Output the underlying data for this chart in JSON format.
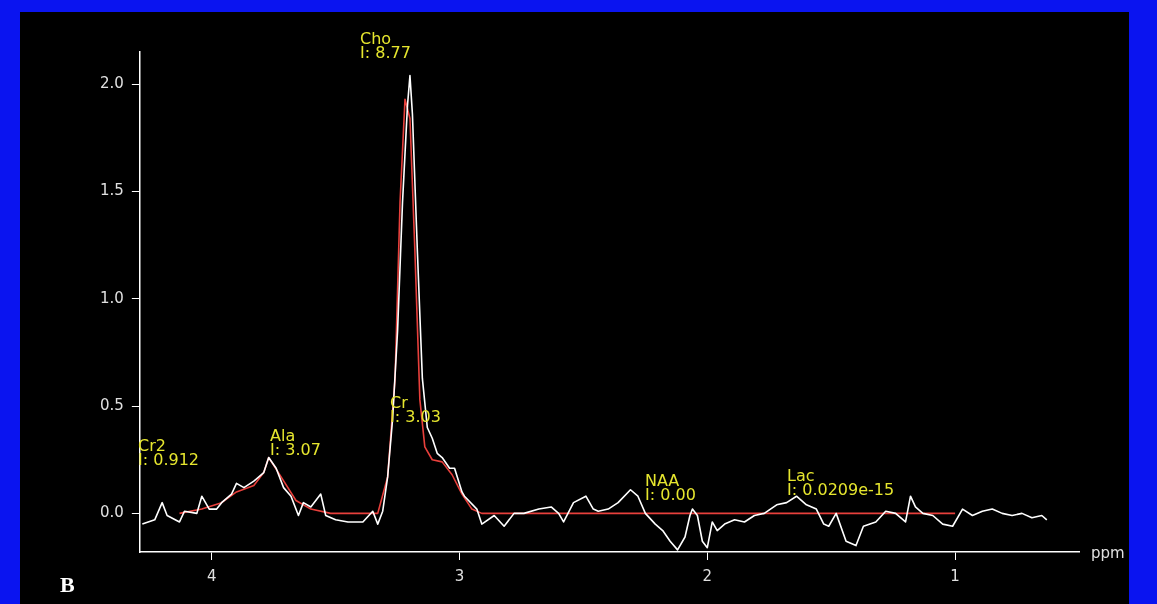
{
  "chart_data": {
    "type": "line",
    "xlabel": "ppm",
    "x": [
      4.28,
      4.23,
      4.2,
      4.18,
      4.13,
      4.11,
      4.06,
      4.04,
      4.01,
      3.98,
      3.96,
      3.92,
      3.9,
      3.87,
      3.83,
      3.79,
      3.77,
      3.74,
      3.71,
      3.68,
      3.65,
      3.63,
      3.6,
      3.56,
      3.54,
      3.5,
      3.45,
      3.39,
      3.35,
      3.33,
      3.31,
      3.29,
      3.27,
      3.25,
      3.23,
      3.21,
      3.2,
      3.19,
      3.17,
      3.15,
      3.13,
      3.11,
      3.09,
      3.07,
      3.04,
      3.02,
      2.99,
      2.98,
      2.93,
      2.91,
      2.86,
      2.82,
      2.78,
      2.74,
      2.68,
      2.63,
      2.6,
      2.58,
      2.54,
      2.49,
      2.46,
      2.44,
      2.4,
      2.36,
      2.31,
      2.28,
      2.25,
      2.21,
      2.18,
      2.15,
      2.12,
      2.09,
      2.07,
      2.06,
      2.04,
      2.02,
      2.0,
      1.98,
      1.96,
      1.93,
      1.89,
      1.85,
      1.81,
      1.77,
      1.72,
      1.68,
      1.64,
      1.6,
      1.56,
      1.53,
      1.51,
      1.48,
      1.44,
      1.4,
      1.37,
      1.32,
      1.28,
      1.24,
      1.2,
      1.18,
      1.16,
      1.13,
      1.09,
      1.05,
      1.01,
      0.97,
      0.93,
      0.89,
      0.85,
      0.81,
      0.77,
      0.73,
      0.69,
      0.65,
      0.63
    ],
    "series": [
      {
        "color": "#ffffff",
        "values": [
          -0.05,
          -0.03,
          0.05,
          -0.01,
          -0.04,
          0.01,
          0.0,
          0.08,
          0.02,
          0.02,
          0.05,
          0.09,
          0.14,
          0.12,
          0.15,
          0.19,
          0.26,
          0.21,
          0.12,
          0.08,
          -0.01,
          0.05,
          0.03,
          0.09,
          -0.01,
          -0.03,
          -0.04,
          -0.04,
          0.01,
          -0.05,
          0.01,
          0.17,
          0.44,
          0.85,
          1.45,
          1.9,
          2.04,
          1.86,
          1.22,
          0.63,
          0.4,
          0.35,
          0.28,
          0.26,
          0.21,
          0.21,
          0.1,
          0.08,
          0.02,
          -0.05,
          -0.01,
          -0.06,
          0.0,
          0.0,
          0.02,
          0.03,
          0.0,
          -0.04,
          0.05,
          0.08,
          0.02,
          0.01,
          0.02,
          0.05,
          0.11,
          0.08,
          0.0,
          -0.05,
          -0.08,
          -0.13,
          -0.17,
          -0.11,
          -0.01,
          0.02,
          -0.01,
          -0.13,
          -0.16,
          -0.04,
          -0.08,
          -0.05,
          -0.03,
          -0.04,
          -0.01,
          0.0,
          0.04,
          0.05,
          0.08,
          0.04,
          0.02,
          -0.05,
          -0.06,
          0.0,
          -0.13,
          -0.15,
          -0.06,
          -0.04,
          0.01,
          0.0,
          -0.04,
          0.08,
          0.03,
          0.0,
          -0.01,
          -0.05,
          -0.06,
          0.02,
          -0.01,
          0.01,
          0.02,
          0.0,
          -0.01,
          0.0,
          -0.02,
          -0.01,
          -0.03
        ]
      },
      {
        "color": "#e8403c",
        "x": [
          4.13,
          4.04,
          3.96,
          3.9,
          3.83,
          3.79,
          3.77,
          3.72,
          3.66,
          3.6,
          3.52,
          3.33,
          3.29,
          3.26,
          3.24,
          3.22,
          3.2,
          3.18,
          3.16,
          3.14,
          3.11,
          3.07,
          3.03,
          2.99,
          2.95,
          2.91,
          1.0
        ],
        "values": [
          0.0,
          0.02,
          0.05,
          0.1,
          0.13,
          0.19,
          0.26,
          0.17,
          0.06,
          0.02,
          0.0,
          0.0,
          0.17,
          0.63,
          1.45,
          1.93,
          1.84,
          1.22,
          0.53,
          0.31,
          0.25,
          0.24,
          0.18,
          0.09,
          0.02,
          0.0,
          0.0
        ]
      }
    ],
    "annotations": [
      "Cho\nI: 8.77",
      "Cr\nI: 3.03",
      "Cr2\nI: 0.912",
      "Ala\nI: 3.07",
      "NAA\nI: 0.00",
      "Lac\nI: 0.0209e-15",
      "B"
    ],
    "xlim": [
      4.29,
      0.5
    ],
    "xticks": [
      4,
      3,
      2,
      1
    ],
    "ylim": [
      -0.18,
      2.15
    ],
    "yticks": [
      {
        "value": 0,
        "label": "0.0"
      },
      0.5,
      {
        "value": 1,
        "label": "1.0"
      },
      1.5,
      {
        "value": 2,
        "label": "2.0"
      }
    ],
    "grid": false,
    "legend": false,
    "marker": "none",
    "line_style": "solid"
  }
}
